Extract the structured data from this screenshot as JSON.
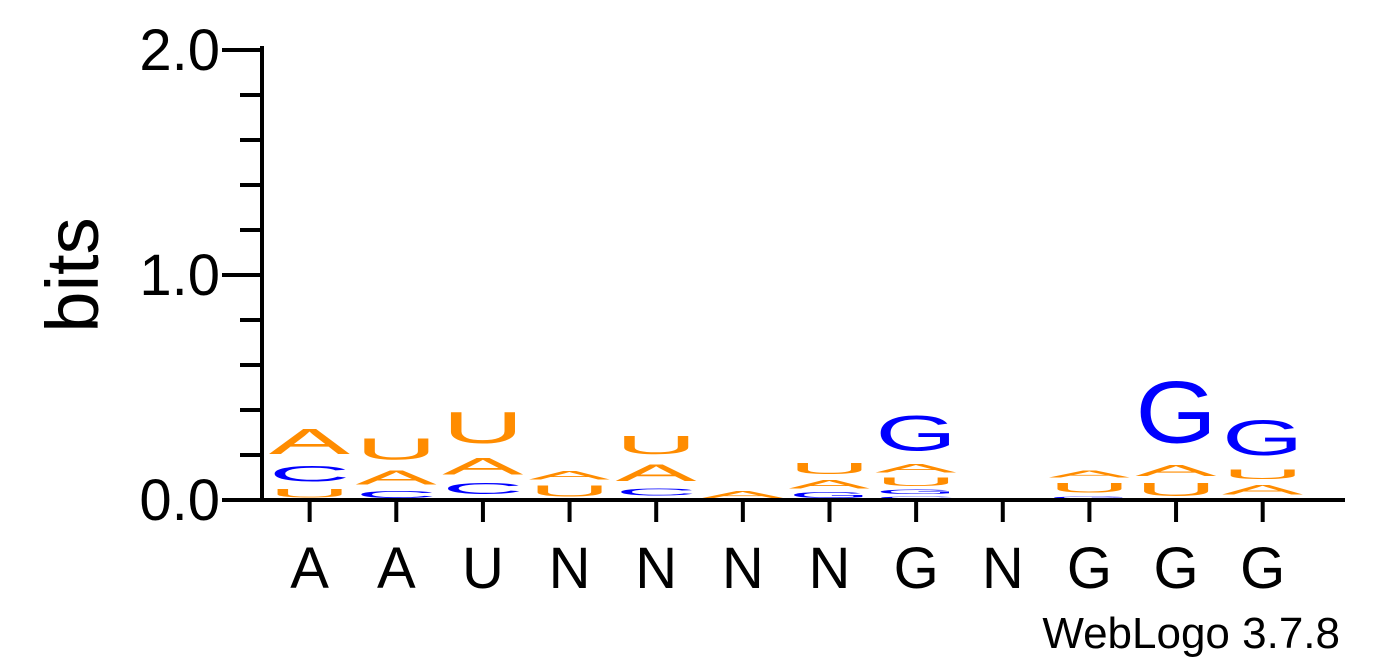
{
  "chart_data": {
    "type": "sequence-logo",
    "ylabel": "bits",
    "ylim": [
      0,
      2.0
    ],
    "yticks": [
      {
        "value": 0.0,
        "label": "0.0"
      },
      {
        "value": 1.0,
        "label": "1.0"
      },
      {
        "value": 2.0,
        "label": "2.0"
      }
    ],
    "minor_tick_step": 0.2,
    "colors": {
      "A": "#ff8c00",
      "U": "#ff8c00",
      "C": "#0000ff",
      "G": "#0000ff"
    },
    "positions": [
      {
        "label": "A",
        "stack": [
          {
            "letter": "U",
            "bits": 0.06
          },
          {
            "letter": "C",
            "bits": 0.11
          },
          {
            "letter": "A",
            "bits": 0.18
          }
        ]
      },
      {
        "label": "A",
        "stack": [
          {
            "letter": "C",
            "bits": 0.05
          },
          {
            "letter": "A",
            "bits": 0.1
          },
          {
            "letter": "U",
            "bits": 0.15
          }
        ]
      },
      {
        "label": "U",
        "stack": [
          {
            "letter": "G",
            "bits": 0.01
          },
          {
            "letter": "C",
            "bits": 0.08
          },
          {
            "letter": "A",
            "bits": 0.12
          },
          {
            "letter": "U",
            "bits": 0.22
          }
        ]
      },
      {
        "label": "N",
        "stack": [
          {
            "letter": "U",
            "bits": 0.08
          },
          {
            "letter": "A",
            "bits": 0.06
          }
        ]
      },
      {
        "label": "N",
        "stack": [
          {
            "letter": "G",
            "bits": 0.01
          },
          {
            "letter": "C",
            "bits": 0.05
          },
          {
            "letter": "A",
            "bits": 0.12
          },
          {
            "letter": "U",
            "bits": 0.13
          }
        ]
      },
      {
        "label": "N",
        "stack": [
          {
            "letter": "A",
            "bits": 0.05
          }
        ]
      },
      {
        "label": "N",
        "stack": [
          {
            "letter": "G",
            "bits": 0.04
          },
          {
            "letter": "A",
            "bits": 0.06
          },
          {
            "letter": "U",
            "bits": 0.08
          }
        ]
      },
      {
        "label": "G",
        "stack": [
          {
            "letter": "C",
            "bits": 0.02
          },
          {
            "letter": "G",
            "bits": 0.03
          },
          {
            "letter": "U",
            "bits": 0.06
          },
          {
            "letter": "A",
            "bits": 0.06
          },
          {
            "letter": "G",
            "bits": 0.25
          }
        ]
      },
      {
        "label": "N",
        "stack": []
      },
      {
        "label": "G",
        "stack": [
          {
            "letter": "G",
            "bits": 0.02
          },
          {
            "letter": "U",
            "bits": 0.07
          },
          {
            "letter": "A",
            "bits": 0.05
          }
        ]
      },
      {
        "label": "G",
        "stack": [
          {
            "letter": "U",
            "bits": 0.09
          },
          {
            "letter": "A",
            "bits": 0.08
          },
          {
            "letter": "G",
            "bits": 0.44
          }
        ]
      },
      {
        "label": "G",
        "stack": [
          {
            "letter": "C",
            "bits": 0.01
          },
          {
            "letter": "A",
            "bits": 0.07
          },
          {
            "letter": "U",
            "bits": 0.07
          },
          {
            "letter": "G",
            "bits": 0.25
          }
        ]
      }
    ]
  },
  "footer": {
    "credit": "WebLogo 3.7.8"
  }
}
